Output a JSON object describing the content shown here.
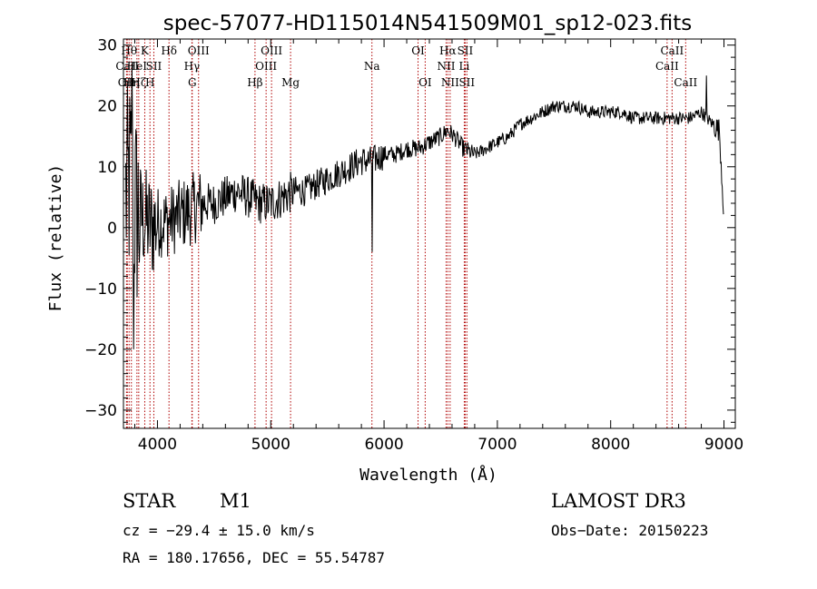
{
  "chart_data": {
    "type": "line",
    "title": "spec-57077-HD115014N541509M01_sp12-023.fits",
    "xlabel": "Wavelength (Å)",
    "ylabel": "Flux (relative)",
    "xlim": [
      3700,
      9100
    ],
    "ylim": [
      -33,
      31
    ],
    "xticks": [
      4000,
      5000,
      6000,
      7000,
      8000,
      9000
    ],
    "yticks": [
      -30,
      -20,
      -10,
      0,
      10,
      20,
      30
    ],
    "grid": false,
    "series": [
      {
        "name": "flux",
        "anchors": [
          [
            3720,
            5
          ],
          [
            3760,
            8
          ],
          [
            3800,
            3
          ],
          [
            3850,
            2
          ],
          [
            3900,
            1
          ],
          [
            3950,
            0
          ],
          [
            4000,
            1
          ],
          [
            4100,
            1
          ],
          [
            4200,
            2
          ],
          [
            4300,
            3
          ],
          [
            4400,
            4
          ],
          [
            4500,
            4
          ],
          [
            4600,
            5
          ],
          [
            4700,
            6
          ],
          [
            4800,
            5
          ],
          [
            4900,
            4
          ],
          [
            5000,
            4
          ],
          [
            5100,
            5
          ],
          [
            5200,
            6
          ],
          [
            5300,
            6
          ],
          [
            5400,
            7
          ],
          [
            5500,
            8
          ],
          [
            5600,
            9
          ],
          [
            5700,
            10
          ],
          [
            5800,
            11
          ],
          [
            5900,
            11
          ],
          [
            6000,
            12
          ],
          [
            6100,
            12
          ],
          [
            6200,
            13
          ],
          [
            6300,
            13
          ],
          [
            6400,
            14
          ],
          [
            6500,
            15
          ],
          [
            6560,
            16
          ],
          [
            6620,
            15
          ],
          [
            6700,
            13
          ],
          [
            6800,
            12
          ],
          [
            6900,
            13
          ],
          [
            7000,
            14
          ],
          [
            7100,
            15
          ],
          [
            7200,
            17
          ],
          [
            7300,
            18
          ],
          [
            7400,
            19
          ],
          [
            7500,
            20
          ],
          [
            7600,
            20
          ],
          [
            7700,
            20
          ],
          [
            7800,
            19
          ],
          [
            7900,
            19
          ],
          [
            8000,
            19
          ],
          [
            8100,
            19
          ],
          [
            8200,
            18
          ],
          [
            8300,
            18
          ],
          [
            8400,
            18
          ],
          [
            8500,
            18
          ],
          [
            8600,
            18
          ],
          [
            8700,
            18
          ],
          [
            8800,
            19
          ],
          [
            8900,
            17
          ],
          [
            8960,
            16
          ],
          [
            9000,
            2
          ]
        ],
        "features": [
          {
            "x": 3790,
            "y": -20
          },
          {
            "x": 3775,
            "y": 27
          },
          {
            "x": 5893,
            "y": -4
          },
          {
            "x": 8843,
            "y": 25
          }
        ]
      }
    ],
    "lines": [
      {
        "name": "OII",
        "x": 3727,
        "row": 3
      },
      {
        "name": "CaII",
        "x": 3734,
        "row": 2
      },
      {
        "name": "Hθ",
        "x": 3750,
        "row": 1
      },
      {
        "name": "Hη",
        "x": 3770,
        "row": 3
      },
      {
        "name": "HeI",
        "x": 3819,
        "row": 2
      },
      {
        "name": "Hζ",
        "x": 3835,
        "row": 3
      },
      {
        "name": "K",
        "x": 3888,
        "row": 1
      },
      {
        "name": "H",
        "x": 3934,
        "row": 3
      },
      {
        "name": "SII",
        "x": 3968,
        "row": 2
      },
      {
        "name": "Hδ",
        "x": 4102,
        "row": 1
      },
      {
        "name": "Hγ",
        "x": 4304,
        "row": 2
      },
      {
        "name": "G",
        "x": 4307,
        "row": 3
      },
      {
        "name": "OIII",
        "x": 4363,
        "row": 1
      },
      {
        "name": "Hβ",
        "x": 4861,
        "row": 3
      },
      {
        "name": "OIII",
        "x": 4959,
        "row": 2
      },
      {
        "name": "OIII",
        "x": 5007,
        "row": 1
      },
      {
        "name": "Mg",
        "x": 5175,
        "row": 3
      },
      {
        "name": "Na",
        "x": 5893,
        "row": 2
      },
      {
        "name": "OI",
        "x": 6300,
        "row": 1
      },
      {
        "name": "OI",
        "x": 6363,
        "row": 3
      },
      {
        "name": "NII",
        "x": 6548,
        "row": 2
      },
      {
        "name": "Hα",
        "x": 6563,
        "row": 1
      },
      {
        "name": "NII",
        "x": 6583,
        "row": 3
      },
      {
        "name": "SII",
        "x": 6716,
        "row": 1
      },
      {
        "name": "Li",
        "x": 6708,
        "row": 2
      },
      {
        "name": "SII",
        "x": 6731,
        "row": 3
      },
      {
        "name": "CaII",
        "x": 8498,
        "row": 2
      },
      {
        "name": "CaII",
        "x": 8542,
        "row": 1
      },
      {
        "name": "CaII",
        "x": 8662,
        "row": 3
      }
    ],
    "colors": {
      "flux": "#000000",
      "lines": "#b00000",
      "axes": "#000000"
    }
  },
  "info": {
    "class": "STAR",
    "subclass": "M1",
    "survey": "LAMOST DR3",
    "cz": "cz = −29.4 ± 15.0 km/s",
    "obs_date": "Obs−Date: 20150223",
    "coords": "RA = 180.17656, DEC =  55.54787"
  }
}
